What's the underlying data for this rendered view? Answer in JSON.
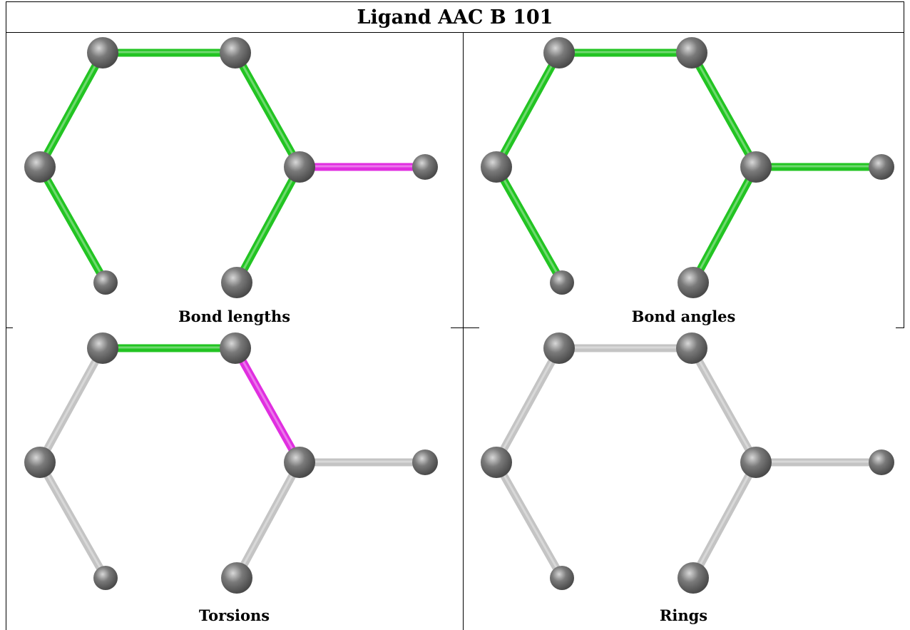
{
  "title": "Ligand AAC B 101",
  "colors": {
    "ok": "#22c422",
    "outlier": "#e02ee0",
    "neutral": "#c4c4c4",
    "atom": "#7a7a7a"
  },
  "panels": [
    {
      "caption": "Bond lengths",
      "bond_states": [
        "ok",
        "ok",
        "ok",
        "ok",
        "outlier",
        "ok",
        "ok"
      ]
    },
    {
      "caption": "Bond angles",
      "bond_states": [
        "ok",
        "ok",
        "ok",
        "ok",
        "ok",
        "ok",
        "ok"
      ]
    },
    {
      "caption": "Torsions",
      "bond_states": [
        "neutral",
        "neutral",
        "ok",
        "outlier",
        "neutral",
        "neutral",
        "neutral"
      ]
    },
    {
      "caption": "Rings",
      "bond_states": [
        "neutral",
        "neutral",
        "neutral",
        "neutral",
        "neutral",
        "neutral",
        "neutral"
      ]
    }
  ]
}
